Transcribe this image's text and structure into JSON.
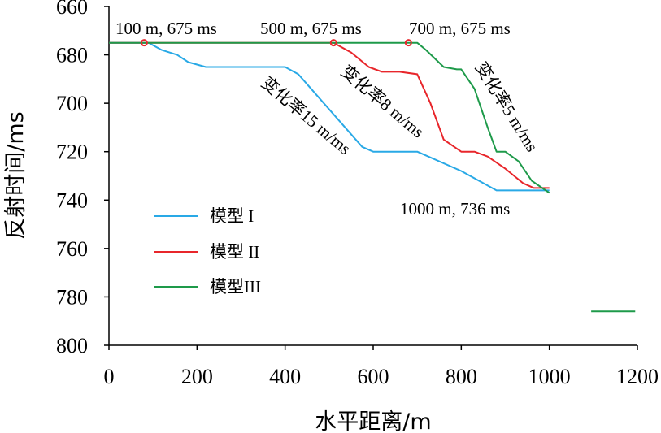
{
  "chart_data": {
    "type": "line",
    "title": "",
    "xlabel": "水平距离/m",
    "ylabel": "反射时间/ms",
    "xlim": [
      0,
      1200
    ],
    "ylim": [
      660,
      800
    ],
    "y_inverted": true,
    "x_ticks": [
      0,
      200,
      400,
      600,
      800,
      1000,
      1200
    ],
    "y_ticks": [
      660,
      680,
      700,
      720,
      740,
      760,
      780,
      800
    ],
    "grid": false,
    "legend_position": "left",
    "series": [
      {
        "name": "模型 I",
        "color": "#29a9e6",
        "points": [
          [
            0,
            675
          ],
          [
            90,
            675
          ],
          [
            120,
            678
          ],
          [
            155,
            680
          ],
          [
            180,
            683
          ],
          [
            220,
            685
          ],
          [
            300,
            685
          ],
          [
            400,
            685
          ],
          [
            430,
            688
          ],
          [
            575,
            718
          ],
          [
            600,
            720
          ],
          [
            700,
            720
          ],
          [
            800,
            728
          ],
          [
            880,
            736
          ],
          [
            1000,
            736
          ]
        ]
      },
      {
        "name": "模型 II",
        "color": "#e8262b",
        "points": [
          [
            0,
            675
          ],
          [
            510,
            675
          ],
          [
            550,
            679
          ],
          [
            590,
            685
          ],
          [
            620,
            687
          ],
          [
            660,
            687
          ],
          [
            700,
            688
          ],
          [
            730,
            700
          ],
          [
            760,
            715
          ],
          [
            800,
            720
          ],
          [
            830,
            720
          ],
          [
            860,
            722
          ],
          [
            900,
            727
          ],
          [
            940,
            733
          ],
          [
            965,
            735
          ],
          [
            1000,
            735
          ]
        ]
      },
      {
        "name": "模型III",
        "color": "#1e9a4a",
        "points": [
          [
            0,
            675
          ],
          [
            700,
            675
          ],
          [
            720,
            678
          ],
          [
            760,
            685
          ],
          [
            790,
            686
          ],
          [
            800,
            686
          ],
          [
            830,
            694
          ],
          [
            860,
            710
          ],
          [
            880,
            720
          ],
          [
            900,
            720
          ],
          [
            930,
            724
          ],
          [
            960,
            732
          ],
          [
            1000,
            737
          ]
        ]
      }
    ],
    "markers": {
      "color": "#e8262b",
      "points": [
        [
          80,
          675
        ],
        [
          510,
          675
        ],
        [
          680,
          675
        ]
      ]
    },
    "annotations": [
      {
        "text": "100 m, 675 ms"
      },
      {
        "text": "500 m, 675 ms"
      },
      {
        "text": "700 m, 675 ms"
      },
      {
        "text": "1000 m, 736 ms"
      },
      {
        "text": "变化率15 m/ms"
      },
      {
        "text": "变化率8 m/ms"
      },
      {
        "text": "变化率5 m/ms"
      }
    ],
    "legend": [
      {
        "label": "模型 I",
        "color": "#29a9e6"
      },
      {
        "label": "模型 II",
        "color": "#e8262b"
      },
      {
        "label": "模型III",
        "color": "#1e9a4a"
      }
    ],
    "stray_mark": {
      "color": "#1e9a4a",
      "x": [
        1095,
        1195
      ],
      "y": 786
    }
  }
}
